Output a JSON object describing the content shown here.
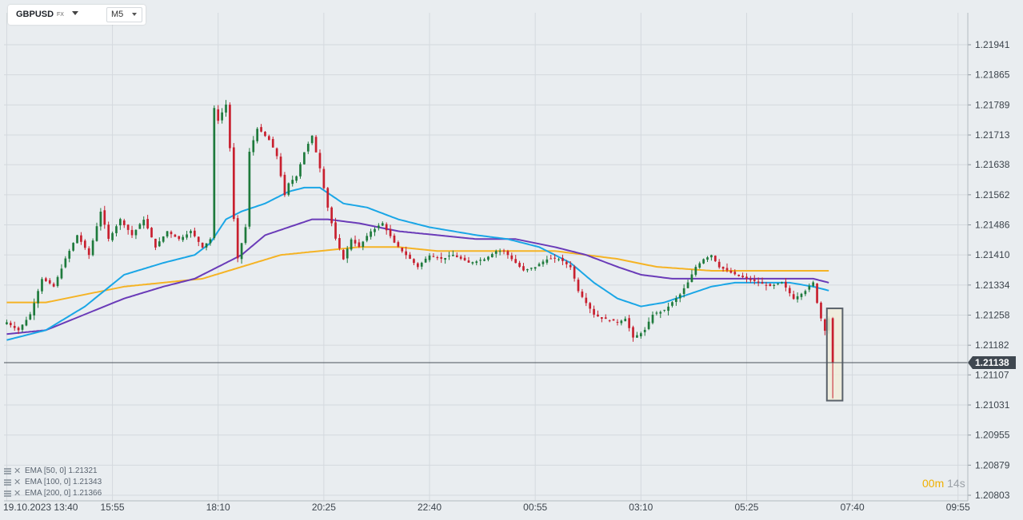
{
  "header": {
    "symbol": "GBPUSD",
    "symbol_type": "FX",
    "timeframe": "M5"
  },
  "legend": [
    {
      "label": "EMA [50, 0] 1.21321"
    },
    {
      "label": "EMA [100, 0] 1.21343"
    },
    {
      "label": "EMA [200, 0] 1.21366"
    }
  ],
  "countdown": {
    "min": "00",
    "min_unit": "m",
    "sec": "14",
    "sec_unit": "s"
  },
  "colors": {
    "background": "#e9edf0",
    "grid": "#d4d9de",
    "candle_up": "#1e7a3c",
    "candle_down": "#c8202f",
    "ema50": "#1aa6e6",
    "ema100": "#6a3bb8",
    "ema200": "#f5b324",
    "price_tag": "#3f4750",
    "highlight_fill": "#f0ecd9",
    "highlight_stroke": "#59616a"
  },
  "chart_data": {
    "type": "candlestick",
    "grid": true,
    "y_axis_side": "right",
    "y_ticks": [
      1.21941,
      1.21865,
      1.21789,
      1.21713,
      1.21638,
      1.21562,
      1.21486,
      1.2141,
      1.21334,
      1.21258,
      1.21182,
      1.21107,
      1.21031,
      1.20955,
      1.20879,
      1.20803
    ],
    "y_tick_labels": [
      "1.21941",
      "1.21865",
      "1.21789",
      "1.21713",
      "1.21638",
      "1.21562",
      "1.21486",
      "1.21410",
      "1.21334",
      "1.21258",
      "1.21182",
      "1.21107",
      "1.21031",
      "1.20955",
      "1.20879",
      "1.20803"
    ],
    "ylim": [
      1.20803,
      1.21985
    ],
    "current_price": 1.21138,
    "current_price_label": "1.21138",
    "x_ticks": [
      {
        "label": "19.10.2023  13:40",
        "bar": 0
      },
      {
        "label": "15:55",
        "bar": 27
      },
      {
        "label": "18:10",
        "bar": 54
      },
      {
        "label": "20:25",
        "bar": 81
      },
      {
        "label": "22:40",
        "bar": 108
      },
      {
        "label": "00:55",
        "bar": 135
      },
      {
        "label": "03:10",
        "bar": 162
      },
      {
        "label": "05:25",
        "bar": 189
      },
      {
        "label": "07:40",
        "bar": 216
      },
      {
        "label": "09:55",
        "bar": 243
      }
    ],
    "x_bar_range": [
      -0.7,
      245.5
    ],
    "series_anchors": [
      {
        "name": "close",
        "points": [
          [
            0,
            1.2124
          ],
          [
            3,
            1.2122
          ],
          [
            6,
            1.2126
          ],
          [
            9,
            1.2135
          ],
          [
            12,
            1.2133
          ],
          [
            15,
            1.214
          ],
          [
            18,
            1.2146
          ],
          [
            21,
            1.2141
          ],
          [
            24,
            1.2152
          ],
          [
            26,
            1.2145
          ],
          [
            29,
            1.215
          ],
          [
            32,
            1.2146
          ],
          [
            35,
            1.215
          ],
          [
            38,
            1.2143
          ],
          [
            41,
            1.2147
          ],
          [
            44,
            1.2145
          ],
          [
            47,
            1.2147
          ],
          [
            50,
            1.2143
          ],
          [
            52,
            1.2145
          ],
          [
            53,
            1.2178
          ],
          [
            54,
            1.2175
          ],
          [
            56,
            1.2179
          ],
          [
            57,
            1.2168
          ],
          [
            58,
            1.215
          ],
          [
            59,
            1.214
          ],
          [
            61,
            1.2148
          ],
          [
            62,
            1.2167
          ],
          [
            64,
            1.2173
          ],
          [
            67,
            1.217
          ],
          [
            69,
            1.2166
          ],
          [
            71,
            1.2156
          ],
          [
            72,
            1.2159
          ],
          [
            74,
            1.2161
          ],
          [
            76,
            1.2167
          ],
          [
            78,
            1.2171
          ],
          [
            80,
            1.2163
          ],
          [
            82,
            1.2153
          ],
          [
            84,
            1.2145
          ],
          [
            86,
            1.214
          ],
          [
            88,
            1.2145
          ],
          [
            90,
            1.2143
          ],
          [
            93,
            1.2147
          ],
          [
            96,
            1.2149
          ],
          [
            99,
            1.2144
          ],
          [
            102,
            1.2141
          ],
          [
            105,
            1.2138
          ],
          [
            108,
            1.2141
          ],
          [
            111,
            1.214
          ],
          [
            114,
            1.2141
          ],
          [
            118,
            1.2139
          ],
          [
            122,
            1.214
          ],
          [
            125,
            1.2142
          ],
          [
            127,
            1.2142
          ],
          [
            129,
            1.214
          ],
          [
            132,
            1.2137
          ],
          [
            135,
            1.2138
          ],
          [
            138,
            1.214
          ],
          [
            141,
            1.214
          ],
          [
            144,
            1.2138
          ],
          [
            146,
            1.2132
          ],
          [
            148,
            1.2129
          ],
          [
            150,
            1.2126
          ],
          [
            152,
            1.2125
          ],
          [
            156,
            1.2124
          ],
          [
            158,
            1.2125
          ],
          [
            160,
            1.212
          ],
          [
            163,
            1.2122
          ],
          [
            165,
            1.2126
          ],
          [
            168,
            1.2127
          ],
          [
            170,
            1.2129
          ],
          [
            172,
            1.2131
          ],
          [
            174,
            1.2134
          ],
          [
            176,
            1.2138
          ],
          [
            178,
            1.214
          ],
          [
            180,
            1.2141
          ],
          [
            182,
            1.2138
          ],
          [
            184,
            1.2137
          ],
          [
            186,
            1.2136
          ],
          [
            189,
            1.2135
          ],
          [
            192,
            1.2134
          ],
          [
            195,
            1.2133
          ],
          [
            198,
            1.2134
          ],
          [
            201,
            1.213
          ],
          [
            204,
            1.2132
          ],
          [
            206,
            1.2134
          ],
          [
            207,
            1.2129
          ],
          [
            208,
            1.2125
          ],
          [
            209,
            1.2122
          ],
          [
            210,
            1.2125
          ],
          [
            211,
            1.2114
          ]
        ]
      },
      {
        "name": "EMA 50",
        "points": [
          [
            0,
            1.21195
          ],
          [
            10,
            1.2122
          ],
          [
            20,
            1.2128
          ],
          [
            30,
            1.2136
          ],
          [
            40,
            1.2139
          ],
          [
            48,
            1.2141
          ],
          [
            52,
            1.2144
          ],
          [
            56,
            1.215
          ],
          [
            60,
            1.2152
          ],
          [
            66,
            1.2154
          ],
          [
            72,
            1.2157
          ],
          [
            76,
            1.2158
          ],
          [
            80,
            1.2158
          ],
          [
            86,
            1.2154
          ],
          [
            92,
            1.2153
          ],
          [
            100,
            1.215
          ],
          [
            108,
            1.2148
          ],
          [
            114,
            1.2147
          ],
          [
            120,
            1.2146
          ],
          [
            128,
            1.2145
          ],
          [
            136,
            1.2143
          ],
          [
            144,
            1.2139
          ],
          [
            150,
            1.2134
          ],
          [
            156,
            1.213
          ],
          [
            162,
            1.2128
          ],
          [
            168,
            1.2129
          ],
          [
            174,
            1.2131
          ],
          [
            180,
            1.2133
          ],
          [
            186,
            1.2134
          ],
          [
            192,
            1.2134
          ],
          [
            200,
            1.2134
          ],
          [
            206,
            1.2133
          ],
          [
            210,
            1.2132
          ]
        ]
      },
      {
        "name": "EMA 100",
        "points": [
          [
            0,
            1.2121
          ],
          [
            10,
            1.2122
          ],
          [
            20,
            1.2126
          ],
          [
            30,
            1.213
          ],
          [
            40,
            1.2133
          ],
          [
            48,
            1.2135
          ],
          [
            54,
            1.2138
          ],
          [
            60,
            1.2141
          ],
          [
            66,
            1.2146
          ],
          [
            72,
            1.2148
          ],
          [
            78,
            1.215
          ],
          [
            82,
            1.215
          ],
          [
            90,
            1.2149
          ],
          [
            100,
            1.2147
          ],
          [
            110,
            1.2146
          ],
          [
            120,
            1.2145
          ],
          [
            130,
            1.2145
          ],
          [
            140,
            1.2143
          ],
          [
            148,
            1.2141
          ],
          [
            156,
            1.2138
          ],
          [
            162,
            1.2136
          ],
          [
            170,
            1.2135
          ],
          [
            180,
            1.2135
          ],
          [
            190,
            1.2135
          ],
          [
            200,
            1.2135
          ],
          [
            206,
            1.2135
          ],
          [
            210,
            1.2134
          ]
        ]
      },
      {
        "name": "EMA 200",
        "points": [
          [
            0,
            1.2129
          ],
          [
            10,
            1.2129
          ],
          [
            20,
            1.2131
          ],
          [
            30,
            1.2133
          ],
          [
            40,
            1.2134
          ],
          [
            50,
            1.2135
          ],
          [
            60,
            1.2138
          ],
          [
            70,
            1.2141
          ],
          [
            80,
            1.2142
          ],
          [
            90,
            1.2143
          ],
          [
            100,
            1.2143
          ],
          [
            110,
            1.2142
          ],
          [
            120,
            1.2142
          ],
          [
            130,
            1.2142
          ],
          [
            140,
            1.2142
          ],
          [
            148,
            1.2141
          ],
          [
            156,
            1.214
          ],
          [
            166,
            1.2138
          ],
          [
            180,
            1.2137
          ],
          [
            200,
            1.2137
          ],
          [
            210,
            1.2137
          ]
        ]
      }
    ],
    "highlight_box": {
      "bar_from": 209.5,
      "bar_to": 213.5,
      "price_from": 1.21042,
      "price_to": 1.21275
    }
  }
}
